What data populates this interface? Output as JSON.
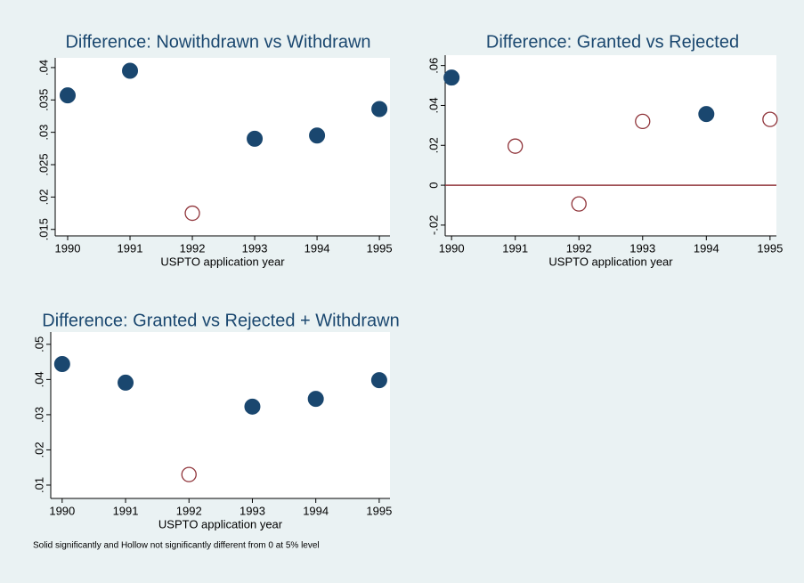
{
  "chart_data": [
    {
      "type": "scatter",
      "title": "Difference: Nowithdrawn vs Withdrawn",
      "x_label": "USPTO application year",
      "x": [
        1990,
        1991,
        1992,
        1993,
        1994,
        1995
      ],
      "values": [
        0.0357,
        0.0395,
        0.0175,
        0.029,
        0.0295,
        0.0336
      ],
      "marker_fill": [
        "solid",
        "solid",
        "hollow",
        "solid",
        "solid",
        "solid"
      ],
      "color": "#1a476f",
      "hollow_color": "#90353b",
      "xlim": [
        1989.8,
        1995.17
      ],
      "xticks": [
        1990,
        1991,
        1992,
        1993,
        1994,
        1995
      ],
      "ylim": [
        0.014,
        0.0415
      ],
      "yticks": [
        {
          "value": 0.015,
          "label": ".015"
        },
        {
          "value": 0.02,
          "label": ".02"
        },
        {
          "value": 0.025,
          "label": ".025"
        },
        {
          "value": 0.03,
          "label": ".03"
        },
        {
          "value": 0.035,
          "label": ".035"
        },
        {
          "value": 0.04,
          "label": ".04"
        }
      ]
    },
    {
      "type": "scatter",
      "title": "Difference: Granted vs Rejected",
      "x_label": "USPTO application year",
      "x": [
        1990,
        1991,
        1992,
        1993,
        1994,
        1995
      ],
      "values": [
        0.054,
        0.0196,
        -0.0094,
        0.032,
        0.0357,
        0.033
      ],
      "marker_fill": [
        "solid",
        "hollow",
        "hollow",
        "hollow",
        "solid",
        "hollow"
      ],
      "color": "#1a476f",
      "hollow_color": "#90353b",
      "reference_line": 0,
      "reference_color": "#90353b",
      "xlim": [
        1989.9,
        1995.1
      ],
      "xticks": [
        1990,
        1991,
        1992,
        1993,
        1994,
        1995
      ],
      "ylim": [
        -0.0254,
        0.0652
      ],
      "yticks": [
        {
          "value": -0.02,
          "label": "-.02"
        },
        0,
        {
          "value": 0.02,
          "label": ".02"
        },
        {
          "value": 0.04,
          "label": ".04"
        },
        {
          "value": 0.06,
          "label": ".06"
        }
      ]
    },
    {
      "type": "scatter",
      "title": "Difference: Granted vs Rejected + Withdrawn",
      "x_label": "USPTO application year",
      "x": [
        1990,
        1991,
        1992,
        1993,
        1994,
        1995
      ],
      "values": [
        0.0444,
        0.0391,
        0.013,
        0.0323,
        0.0345,
        0.0398
      ],
      "marker_fill": [
        "solid",
        "solid",
        "hollow",
        "solid",
        "solid",
        "solid"
      ],
      "color": "#1a476f",
      "hollow_color": "#90353b",
      "xlim": [
        1989.82,
        1995.17
      ],
      "xticks": [
        1990,
        1991,
        1992,
        1993,
        1994,
        1995
      ],
      "ylim": [
        0.0062,
        0.0535
      ],
      "yticks": [
        {
          "value": 0.01,
          "label": ".01"
        },
        {
          "value": 0.02,
          "label": ".02"
        },
        {
          "value": 0.03,
          "label": ".03"
        },
        {
          "value": 0.04,
          "label": ".04"
        },
        {
          "value": 0.05,
          "label": ".05"
        }
      ]
    }
  ],
  "note": "Solid significantly and Hollow not significantly different from 0 at 5% level"
}
